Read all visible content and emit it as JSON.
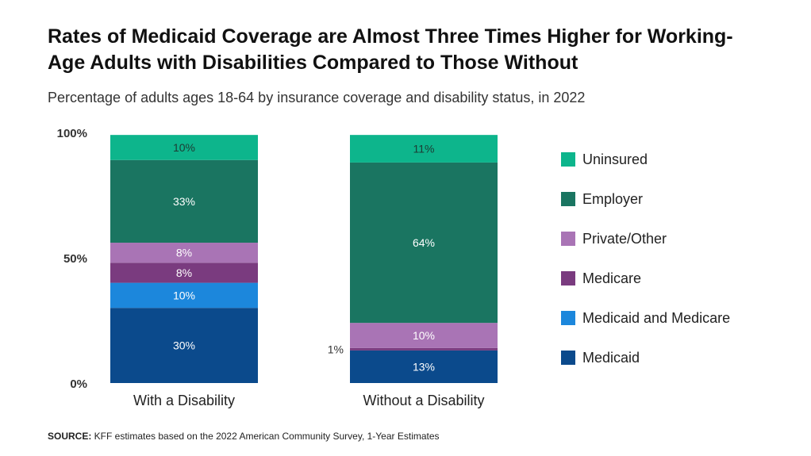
{
  "title": "Rates of Medicaid Coverage are Almost Three Times Higher for Working-Age Adults with Disabilities Compared to Those Without",
  "subtitle": "Percentage of adults ages 18-64 by insurance coverage and disability status, in 2022",
  "source": {
    "label": "SOURCE:",
    "text": " KFF estimates based on the 2022 American Community Survey, 1-Year Estimates"
  },
  "chart_data": {
    "type": "bar",
    "stacked": true,
    "categories": [
      "With a Disability",
      "Without a Disability"
    ],
    "ylim": [
      0,
      100
    ],
    "yticks": [
      "0%",
      "50%",
      "100%"
    ],
    "legend_position": "right",
    "series": [
      {
        "name": "Medicaid",
        "color": "#0b4a8c",
        "values": [
          30,
          13
        ],
        "labels": [
          "30%",
          "13%"
        ]
      },
      {
        "name": "Medicaid and Medicare",
        "color": "#1c87dc",
        "values": [
          10,
          0
        ],
        "labels": [
          "10%",
          ""
        ]
      },
      {
        "name": "Medicare",
        "color": "#7a3b7f",
        "values": [
          8,
          1
        ],
        "labels": [
          "8%",
          "1%"
        ]
      },
      {
        "name": "Private/Other",
        "color": "#a974b5",
        "values": [
          8,
          10
        ],
        "labels": [
          "8%",
          "10%"
        ]
      },
      {
        "name": "Employer",
        "color": "#1a7561",
        "values": [
          33,
          64
        ],
        "labels": [
          "33%",
          "64%"
        ]
      },
      {
        "name": "Uninsured",
        "color": "#0db58c",
        "values": [
          10,
          11
        ],
        "labels": [
          "10%",
          "11%"
        ]
      }
    ]
  }
}
